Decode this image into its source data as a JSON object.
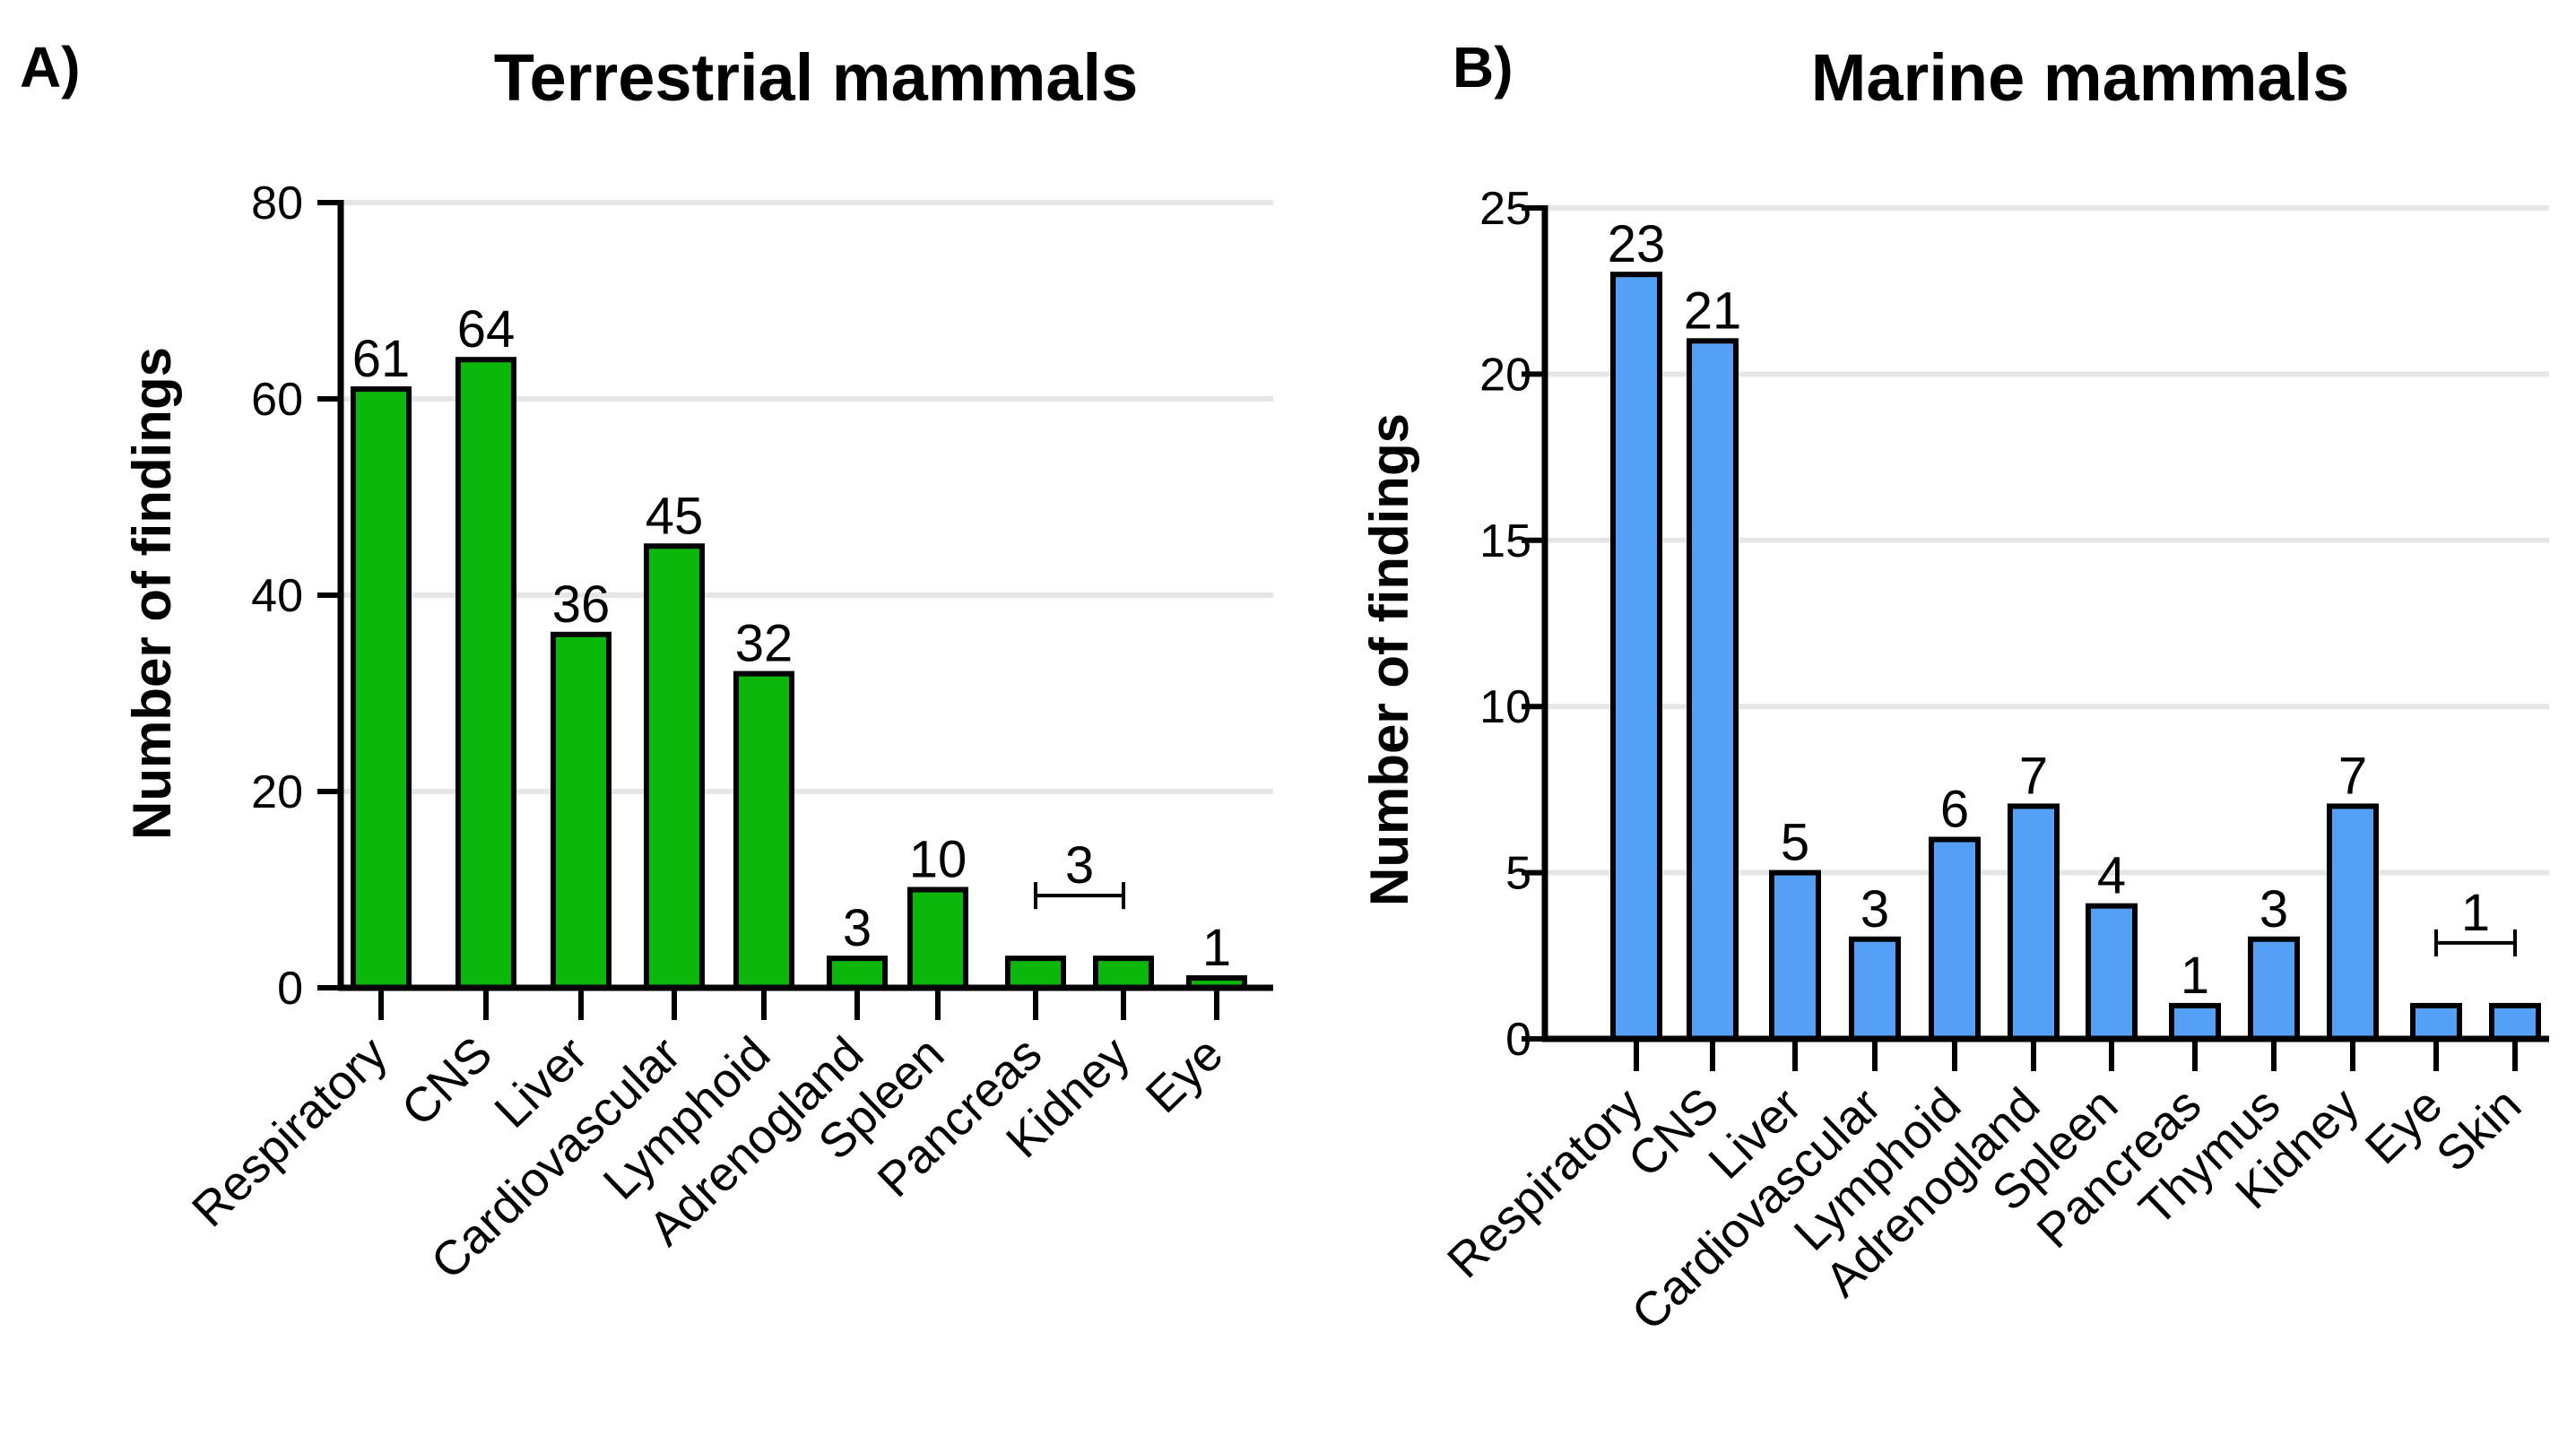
{
  "colors": {
    "left_bar": "#0ab70a",
    "right_bar": "#55a0f7",
    "grid": "#e6e6e6",
    "axis": "#000000"
  },
  "chart_data": [
    {
      "panel": "A)",
      "type": "bar",
      "title": "Terrestrial mammals",
      "ylabel": "Number of findings",
      "xlabel": "",
      "ylim": [
        0,
        80
      ],
      "yticks": [
        0,
        20,
        40,
        60,
        80
      ],
      "grid": true,
      "categories": [
        "Respiratory",
        "CNS",
        "Liver",
        "Cardiovascular",
        "Lymphoid",
        "Adrenogland",
        "Spleen",
        "Pancreas",
        "Kidney",
        "Eye"
      ],
      "values": [
        61,
        64,
        36,
        45,
        32,
        3,
        10,
        3,
        3,
        1
      ],
      "labels": [
        {
          "text": "61",
          "bar": 0
        },
        {
          "text": "64",
          "bar": 1
        },
        {
          "text": "36",
          "bar": 2
        },
        {
          "text": "45",
          "bar": 3
        },
        {
          "text": "32",
          "bar": 4
        },
        {
          "text": "3",
          "bar": 5
        },
        {
          "text": "10",
          "bar": 6
        },
        {
          "text": "3",
          "from": 7,
          "to": 8,
          "bracket": true
        },
        {
          "text": "1",
          "bar": 9
        }
      ]
    },
    {
      "panel": "B)",
      "type": "bar",
      "title": "Marine mammals",
      "ylabel": "Number of findings",
      "xlabel": "",
      "ylim": [
        0,
        25
      ],
      "yticks": [
        0,
        5,
        10,
        15,
        20,
        25
      ],
      "grid": true,
      "categories": [
        "Respiratory",
        "CNS",
        "Liver",
        "Cardiovascular",
        "Lymphoid",
        "Adrenogland",
        "Spleen",
        "Pancreas",
        "Thymus",
        "Kidney",
        "Eye",
        "Skin"
      ],
      "values": [
        23,
        21,
        5,
        3,
        6,
        7,
        4,
        1,
        3,
        7,
        1,
        1
      ],
      "labels": [
        {
          "text": "23",
          "bar": 0
        },
        {
          "text": "21",
          "bar": 1
        },
        {
          "text": "5",
          "bar": 2
        },
        {
          "text": "3",
          "bar": 3
        },
        {
          "text": "6",
          "bar": 4
        },
        {
          "text": "7",
          "bar": 5
        },
        {
          "text": "4",
          "bar": 6
        },
        {
          "text": "1",
          "bar": 7
        },
        {
          "text": "3",
          "bar": 8
        },
        {
          "text": "7",
          "bar": 9
        },
        {
          "text": "1",
          "from": 10,
          "to": 11,
          "bracket": true
        }
      ]
    }
  ]
}
